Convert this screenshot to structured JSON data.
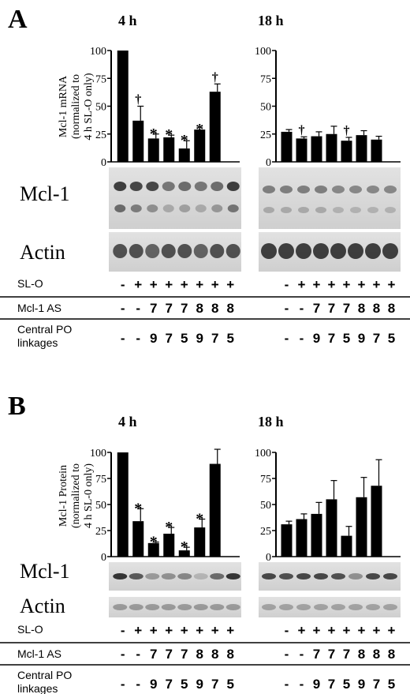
{
  "panels": [
    {
      "letter": "A",
      "ylabel_lines": [
        "Mcl-1 mRNA",
        "(normalized to",
        "4 h SL-O only)"
      ],
      "blot_labels": [
        "Mcl-1",
        "Actin"
      ],
      "charts": [
        {
          "title": "4 h",
          "yticks": [
            "0",
            "25",
            "50",
            "75",
            "100"
          ]
        },
        {
          "title": "18 h",
          "yticks": [
            "0",
            "25",
            "50",
            "75",
            "100"
          ]
        }
      ]
    },
    {
      "letter": "B",
      "ylabel_lines": [
        "Mcl-1 Protein",
        "(normalized to",
        "4 h SL-0 only)"
      ],
      "blot_labels": [
        "Mcl-1",
        "Actin"
      ],
      "charts": [
        {
          "title": "4 h",
          "yticks": [
            "0",
            "25",
            "50",
            "75",
            "100"
          ]
        },
        {
          "title": "18 h",
          "yticks": [
            "0",
            "25",
            "50",
            "75",
            "100"
          ]
        }
      ]
    }
  ],
  "row_labels": {
    "slo": "SL-O",
    "mcl1as": "Mcl-1 AS",
    "central1": "Central PO",
    "central2": "linkages"
  },
  "row_values": {
    "slo": [
      "-",
      "+",
      "+",
      "+",
      "+",
      "+",
      "+",
      "+"
    ],
    "mcl1as": [
      "-",
      "-",
      "7",
      "7",
      "7",
      "8",
      "8",
      "8"
    ],
    "central": [
      "-",
      "-",
      "9",
      "7",
      "5",
      "9",
      "7",
      "5"
    ]
  },
  "chart_data": [
    {
      "type": "bar",
      "title": "4 h",
      "ylabel": "Mcl-1 mRNA (normalized to 4 h SL-O only)",
      "categories": [
        "1",
        "2",
        "3",
        "4",
        "5",
        "6",
        "7",
        "8"
      ],
      "values": [
        100,
        37,
        21,
        22,
        12,
        29,
        63,
        0
      ],
      "errors": [
        0,
        13,
        4,
        2,
        7,
        0,
        7,
        0
      ],
      "marks": [
        "",
        "†",
        "*",
        "*",
        "*",
        "*",
        "†",
        ""
      ],
      "ylim": [
        0,
        100
      ]
    },
    {
      "type": "bar",
      "title": "18 h",
      "ylabel": "Mcl-1 mRNA (normalized to 4 h SL-O only)",
      "categories": [
        "1",
        "2",
        "3",
        "4",
        "5",
        "6",
        "7",
        "8"
      ],
      "values": [
        27,
        21,
        23,
        25,
        19,
        24,
        20,
        0
      ],
      "errors": [
        2,
        1.5,
        4,
        7,
        3,
        4,
        3,
        0
      ],
      "marks": [
        "",
        "†",
        "",
        "",
        "†",
        "",
        "",
        ""
      ],
      "ylim": [
        0,
        100
      ]
    },
    {
      "type": "bar",
      "title": "4 h",
      "ylabel": "Mcl-1 Protein (normalized to 4 h SL-0 only)",
      "categories": [
        "1",
        "2",
        "3",
        "4",
        "5",
        "6",
        "7",
        "8"
      ],
      "values": [
        100,
        34,
        13,
        22,
        6,
        28,
        89,
        0
      ],
      "errors": [
        0,
        12,
        1,
        6,
        3,
        8,
        14,
        0
      ],
      "marks": [
        "",
        "*",
        "*",
        "*",
        "*",
        "*",
        "",
        ""
      ],
      "ylim": [
        0,
        100
      ]
    },
    {
      "type": "bar",
      "title": "18 h",
      "ylabel": "Mcl-1 Protein (normalized to 4 h SL-0 only)",
      "categories": [
        "1",
        "2",
        "3",
        "4",
        "5",
        "6",
        "7",
        "8"
      ],
      "values": [
        31,
        36,
        41,
        55,
        20,
        57,
        68,
        0
      ],
      "errors": [
        3,
        5,
        11,
        18,
        9,
        19,
        25,
        0
      ],
      "marks": [
        "",
        "",
        "",
        "",
        "",
        "",
        "",
        ""
      ],
      "ylim": [
        0,
        100
      ]
    }
  ]
}
